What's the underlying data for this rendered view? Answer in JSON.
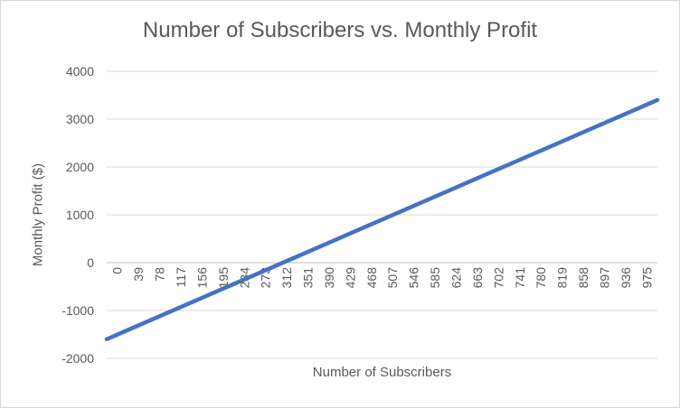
{
  "chart_data": {
    "type": "line",
    "title": "Number of Subscribers vs. Monthly Profit",
    "xlabel": "Number of Subscribers",
    "ylabel": "Monthly Profit ($)",
    "x_tick_labels": [
      "0",
      "39",
      "78",
      "117",
      "156",
      "195",
      "234",
      "273",
      "312",
      "351",
      "390",
      "429",
      "468",
      "507",
      "546",
      "585",
      "624",
      "663",
      "702",
      "741",
      "780",
      "819",
      "858",
      "897",
      "936",
      "975"
    ],
    "y_tick_labels": [
      "4000",
      "3000",
      "2000",
      "1000",
      "0",
      "-1000",
      "-2000"
    ],
    "ylim": [
      -2000,
      4000
    ],
    "xlim": [
      0,
      1000
    ],
    "grid": true,
    "legend": "none",
    "line_color": "#4472c4",
    "series": [
      {
        "x": [
          0,
          1000
        ],
        "values": [
          -1600,
          3400
        ]
      }
    ]
  }
}
